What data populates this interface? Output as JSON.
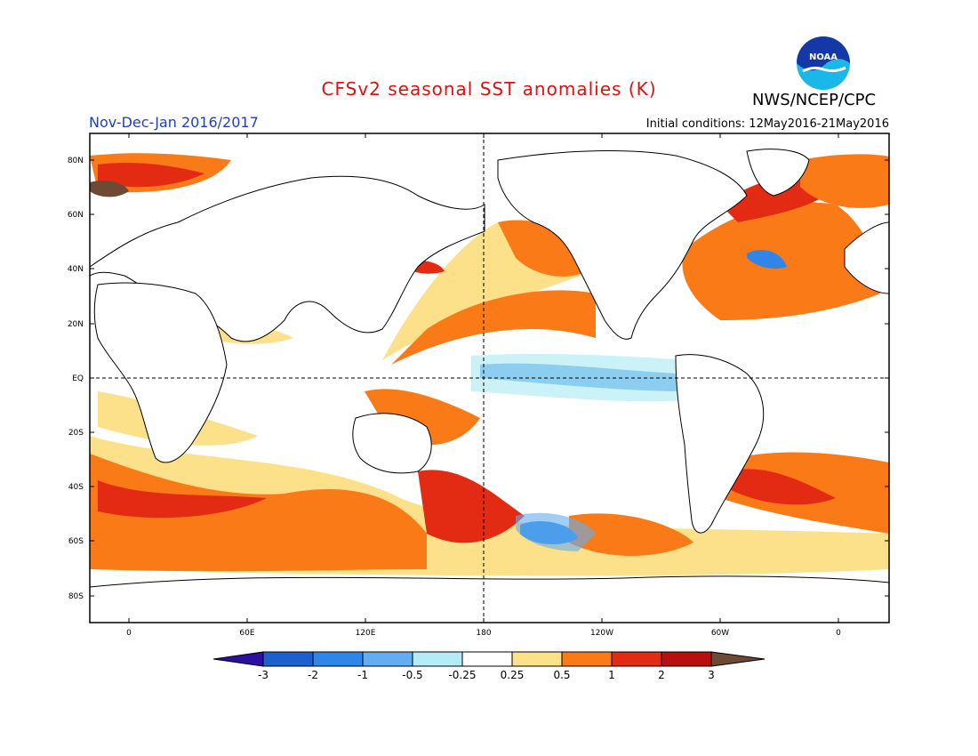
{
  "header": {
    "title": "CFSv2 seasonal SST anomalies (K)",
    "agency": "NWS/NCEP/CPC",
    "period": "Nov-Dec-Jan 2016/2017",
    "initial_conditions": "Initial conditions: 12May2016-21May2016"
  },
  "logo": {
    "text": "NOAA"
  },
  "axes": {
    "lat_labels": [
      "80N",
      "60N",
      "40N",
      "20N",
      "EQ",
      "20S",
      "40S",
      "60S",
      "80S"
    ],
    "lon_labels": [
      "0",
      "60E",
      "120E",
      "180",
      "120W",
      "60W",
      "0"
    ]
  },
  "colorbar": {
    "labels": [
      "-3",
      "-2",
      "-1",
      "-0.5",
      "-0.25",
      "0.25",
      "0.5",
      "1",
      "2",
      "3"
    ],
    "colors": [
      "#2a0fa0",
      "#1c5fcf",
      "#2f86e8",
      "#62aef0",
      "#b3ecf4",
      "#ffffff",
      "#fde08a",
      "#fb7a18",
      "#e32a12",
      "#ba0f0f",
      "#6e4a34"
    ]
  }
}
